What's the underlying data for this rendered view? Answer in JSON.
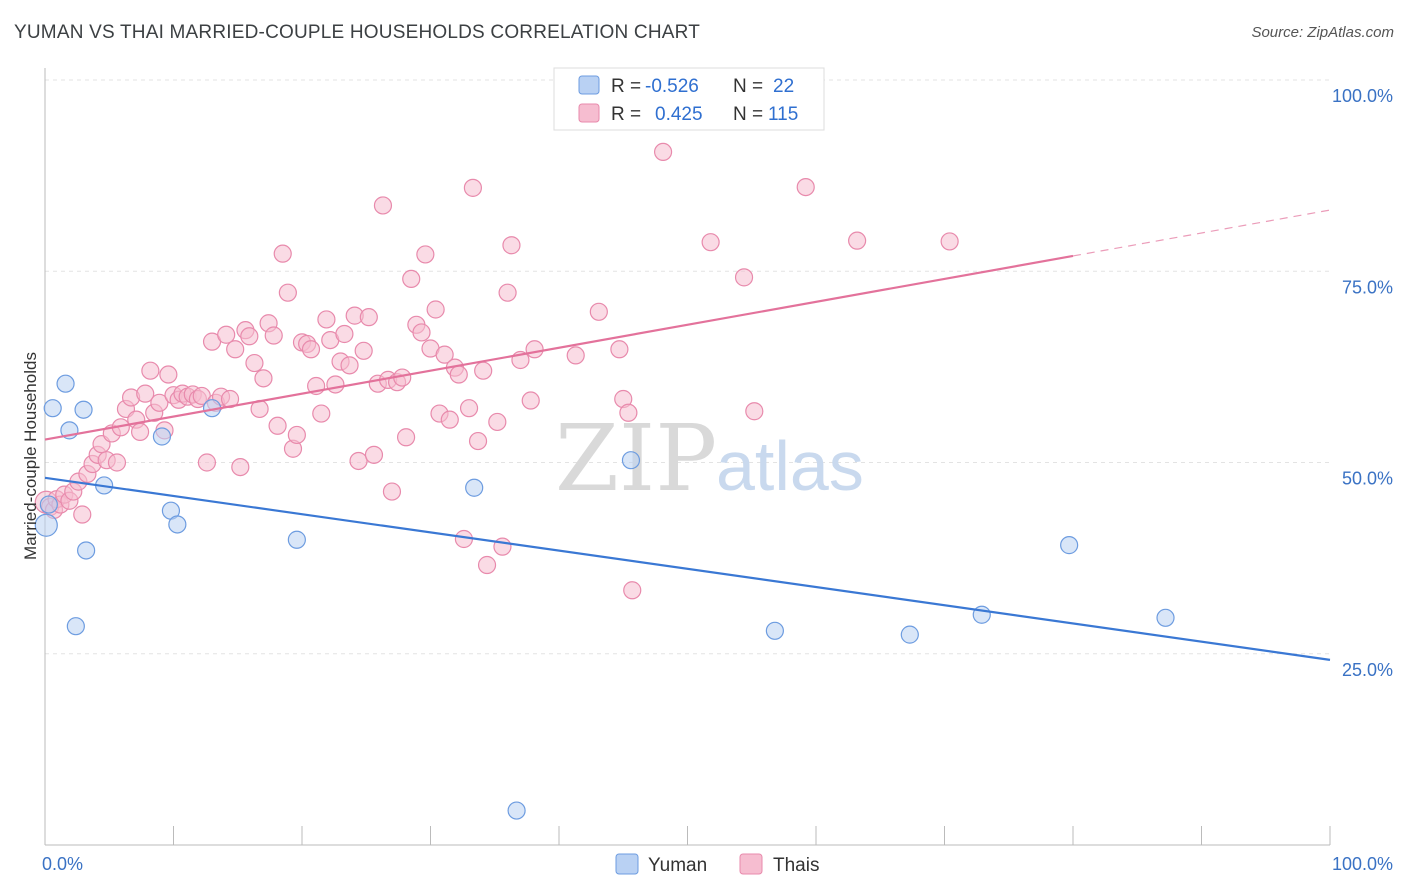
{
  "header": {
    "title": "YUMAN VS THAI MARRIED-COUPLE HOUSEHOLDS CORRELATION CHART",
    "source": "Source: ZipAtlas.com"
  },
  "watermark": {
    "zip": "ZIP",
    "atlas": "atlas"
  },
  "legend": {
    "r_label": "R =",
    "n_label": "N =",
    "yuman": {
      "r": "-0.526",
      "n": "22"
    },
    "thais": {
      "r": "0.425",
      "n": "115"
    }
  },
  "chart_data": {
    "type": "scatter",
    "title": "YUMAN VS THAI MARRIED-COUPLE HOUSEHOLDS CORRELATION CHART",
    "xlabel": "",
    "ylabel": "Married-couple Households",
    "xlim": [
      0,
      100
    ],
    "ylim": [
      0,
      100
    ],
    "x_tick_labels": [
      "0.0%",
      "100.0%"
    ],
    "y_ticks": [
      25,
      50,
      75,
      100
    ],
    "y_tick_labels": [
      "25.0%",
      "50.0%",
      "75.0%",
      "100.0%"
    ],
    "grid": true,
    "legend_placement": "top-center",
    "colors": {
      "yuman": "#3a78d4",
      "thais": "#e3729b",
      "yuman_fill": "#b9d1f3",
      "thais_fill": "#f6bdd0"
    },
    "series": [
      {
        "name": "Yuman",
        "points": [
          [
            0.1,
            41.8
          ],
          [
            0.6,
            57.1
          ],
          [
            1.6,
            60.3
          ],
          [
            1.9,
            54.2
          ],
          [
            2.4,
            28.6
          ],
          [
            3.0,
            56.9
          ],
          [
            3.2,
            38.5
          ],
          [
            4.6,
            47.0
          ],
          [
            9.1,
            53.4
          ],
          [
            9.8,
            43.7
          ],
          [
            10.3,
            41.9
          ],
          [
            13.0,
            57.1
          ],
          [
            19.6,
            39.9
          ],
          [
            33.4,
            46.7
          ],
          [
            36.7,
            4.5
          ],
          [
            45.6,
            50.3
          ],
          [
            56.8,
            28.0
          ],
          [
            67.3,
            27.5
          ],
          [
            72.9,
            30.1
          ],
          [
            79.7,
            39.2
          ],
          [
            87.2,
            29.7
          ],
          [
            0.3,
            44.5
          ]
        ],
        "trend": {
          "x": [
            0,
            100
          ],
          "y": [
            48.0,
            24.2
          ]
        }
      },
      {
        "name": "Thais",
        "points": [
          [
            0.1,
            44.8
          ],
          [
            0.4,
            44.2
          ],
          [
            0.7,
            43.8
          ],
          [
            0.9,
            45.2
          ],
          [
            1.2,
            44.5
          ],
          [
            1.5,
            45.8
          ],
          [
            1.9,
            45.0
          ],
          [
            2.2,
            46.2
          ],
          [
            2.6,
            47.5
          ],
          [
            2.9,
            43.2
          ],
          [
            3.3,
            48.5
          ],
          [
            3.7,
            49.8
          ],
          [
            4.1,
            51.0
          ],
          [
            4.4,
            52.4
          ],
          [
            4.8,
            50.3
          ],
          [
            5.2,
            53.8
          ],
          [
            5.6,
            50.0
          ],
          [
            5.9,
            54.6
          ],
          [
            6.3,
            57.0
          ],
          [
            6.7,
            58.5
          ],
          [
            7.1,
            55.6
          ],
          [
            7.4,
            54.0
          ],
          [
            7.8,
            59.0
          ],
          [
            8.2,
            62.0
          ],
          [
            8.5,
            56.5
          ],
          [
            8.9,
            57.8
          ],
          [
            9.3,
            54.2
          ],
          [
            9.6,
            61.5
          ],
          [
            10.0,
            58.8
          ],
          [
            10.4,
            58.2
          ],
          [
            10.7,
            59.0
          ],
          [
            11.1,
            58.6
          ],
          [
            11.5,
            58.9
          ],
          [
            11.9,
            58.3
          ],
          [
            12.2,
            58.7
          ],
          [
            12.6,
            50.0
          ],
          [
            13.0,
            65.8
          ],
          [
            13.3,
            57.8
          ],
          [
            13.7,
            58.6
          ],
          [
            14.1,
            66.7
          ],
          [
            14.4,
            58.3
          ],
          [
            14.8,
            64.8
          ],
          [
            15.2,
            49.4
          ],
          [
            15.6,
            67.3
          ],
          [
            15.9,
            66.5
          ],
          [
            16.3,
            63.0
          ],
          [
            16.7,
            57.0
          ],
          [
            17.0,
            61.0
          ],
          [
            17.4,
            68.2
          ],
          [
            17.8,
            66.6
          ],
          [
            18.1,
            54.8
          ],
          [
            18.5,
            77.3
          ],
          [
            18.9,
            72.2
          ],
          [
            19.3,
            51.8
          ],
          [
            19.6,
            53.6
          ],
          [
            20.0,
            65.7
          ],
          [
            20.4,
            65.5
          ],
          [
            20.7,
            64.8
          ],
          [
            21.1,
            60.0
          ],
          [
            21.5,
            56.4
          ],
          [
            21.9,
            68.7
          ],
          [
            22.2,
            66.0
          ],
          [
            22.6,
            60.2
          ],
          [
            23.0,
            63.2
          ],
          [
            23.3,
            66.8
          ],
          [
            23.7,
            62.7
          ],
          [
            24.1,
            69.2
          ],
          [
            24.4,
            50.2
          ],
          [
            24.8,
            64.6
          ],
          [
            25.2,
            69.0
          ],
          [
            25.6,
            51.0
          ],
          [
            25.9,
            60.3
          ],
          [
            26.3,
            83.6
          ],
          [
            26.7,
            60.8
          ],
          [
            27.0,
            46.2
          ],
          [
            27.4,
            60.5
          ],
          [
            27.8,
            61.1
          ],
          [
            28.1,
            53.3
          ],
          [
            28.5,
            74.0
          ],
          [
            28.9,
            68.0
          ],
          [
            29.3,
            67.0
          ],
          [
            29.6,
            77.2
          ],
          [
            30.0,
            64.9
          ],
          [
            30.4,
            70.0
          ],
          [
            30.7,
            56.4
          ],
          [
            31.1,
            64.1
          ],
          [
            31.5,
            55.6
          ],
          [
            31.9,
            62.4
          ],
          [
            32.2,
            61.5
          ],
          [
            32.6,
            40.0
          ],
          [
            33.0,
            57.1
          ],
          [
            33.3,
            85.9
          ],
          [
            33.7,
            52.8
          ],
          [
            34.1,
            62.0
          ],
          [
            34.4,
            36.6
          ],
          [
            35.2,
            55.3
          ],
          [
            35.6,
            39.0
          ],
          [
            36.0,
            72.2
          ],
          [
            36.3,
            78.4
          ],
          [
            37.0,
            63.4
          ],
          [
            37.8,
            58.1
          ],
          [
            38.1,
            64.8
          ],
          [
            41.3,
            64.0
          ],
          [
            43.1,
            69.7
          ],
          [
            44.7,
            64.8
          ],
          [
            45.0,
            58.3
          ],
          [
            45.4,
            56.5
          ],
          [
            45.7,
            33.3
          ],
          [
            48.1,
            90.6
          ],
          [
            51.8,
            78.8
          ],
          [
            54.4,
            74.2
          ],
          [
            55.2,
            56.7
          ],
          [
            59.2,
            86.0
          ],
          [
            70.4,
            78.9
          ],
          [
            63.2,
            79.0
          ]
        ],
        "trend": {
          "x": [
            0,
            80
          ],
          "y": [
            53.0,
            77.0
          ]
        },
        "trend_dashed": {
          "x": [
            80,
            100
          ],
          "y": [
            77.0,
            83.0
          ]
        }
      }
    ]
  }
}
